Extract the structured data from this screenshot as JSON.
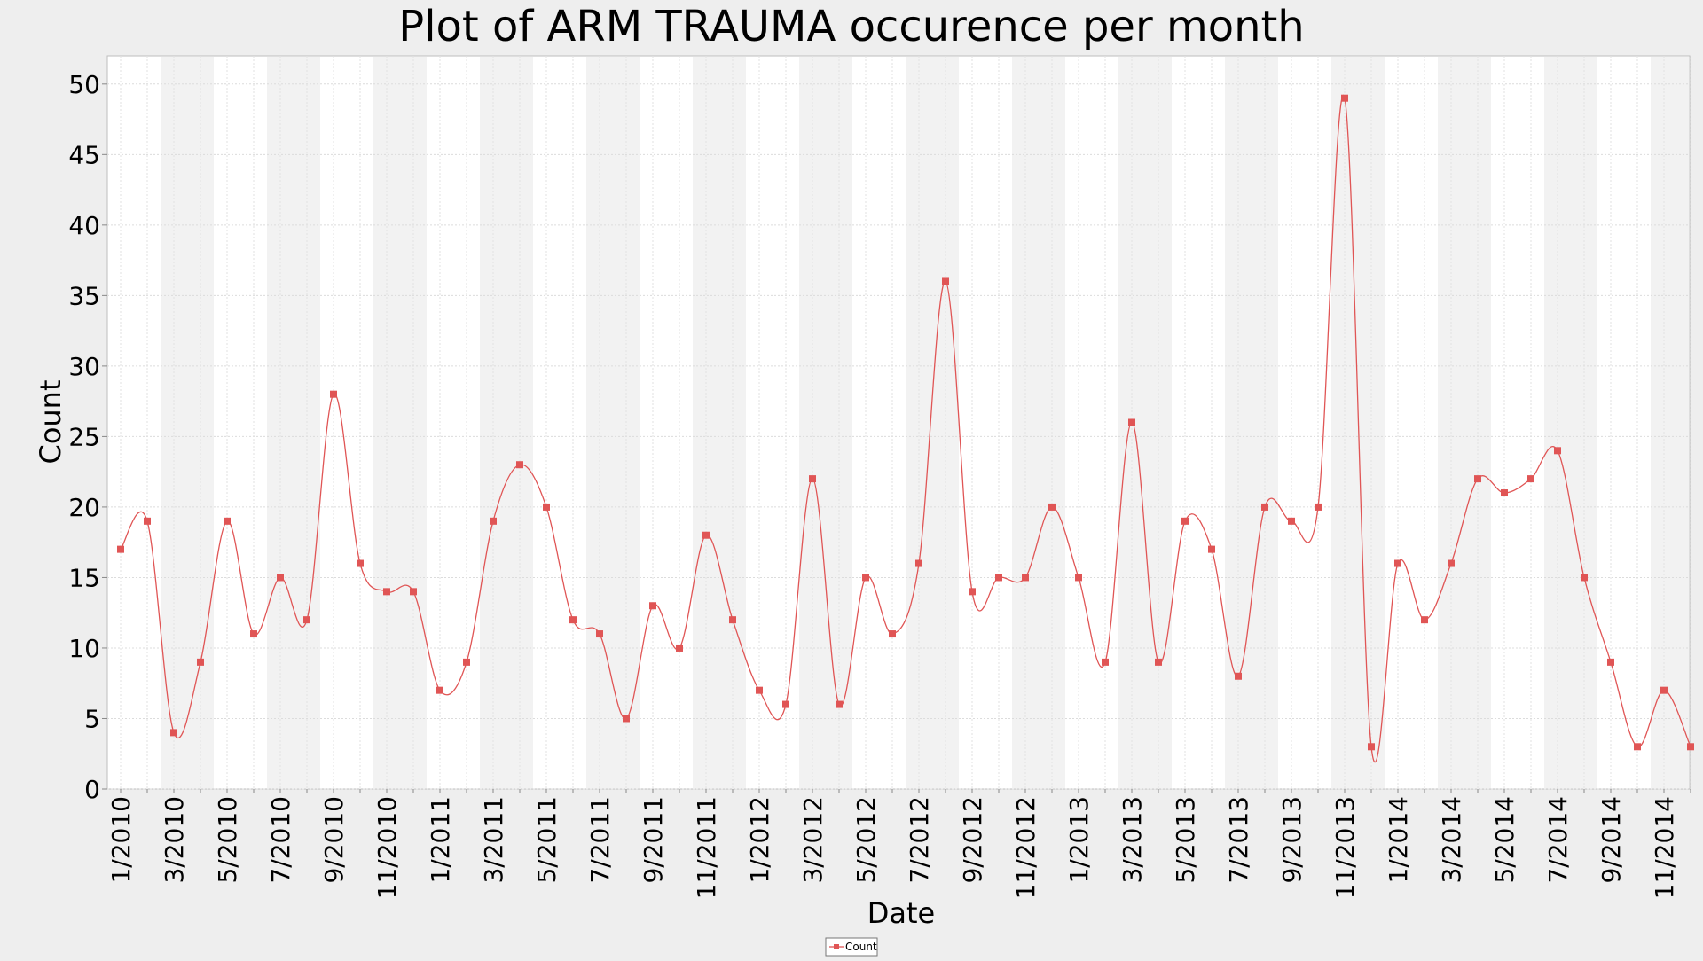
{
  "chart_data": {
    "type": "line",
    "title": "Plot of ARM TRAUMA occurence per month",
    "xlabel": "Date",
    "ylabel": "Count",
    "ylim": [
      0,
      52
    ],
    "y_ticks": [
      0,
      5,
      10,
      15,
      20,
      25,
      30,
      35,
      40,
      45,
      50
    ],
    "x_tick_labels": [
      "1/2010",
      "3/2010",
      "5/2010",
      "7/2010",
      "9/2010",
      "11/2010",
      "1/2011",
      "3/2011",
      "5/2011",
      "7/2011",
      "9/2011",
      "11/2011",
      "1/2012",
      "3/2012",
      "5/2012",
      "7/2012",
      "9/2012",
      "11/2012",
      "1/2013",
      "3/2013",
      "5/2013",
      "7/2013",
      "9/2013",
      "11/2013",
      "1/2014",
      "3/2014",
      "5/2014",
      "7/2014",
      "9/2014",
      "11/2014"
    ],
    "series": [
      {
        "name": "Count",
        "color": "#e05555",
        "x": [
          "1/2010",
          "2/2010",
          "3/2010",
          "4/2010",
          "5/2010",
          "6/2010",
          "7/2010",
          "8/2010",
          "9/2010",
          "10/2010",
          "11/2010",
          "12/2010",
          "1/2011",
          "2/2011",
          "3/2011",
          "4/2011",
          "5/2011",
          "6/2011",
          "7/2011",
          "8/2011",
          "9/2011",
          "10/2011",
          "11/2011",
          "12/2011",
          "1/2012",
          "2/2012",
          "3/2012",
          "4/2012",
          "5/2012",
          "6/2012",
          "7/2012",
          "8/2012",
          "9/2012",
          "10/2012",
          "11/2012",
          "12/2012",
          "1/2013",
          "2/2013",
          "3/2013",
          "4/2013",
          "5/2013",
          "6/2013",
          "7/2013",
          "8/2013",
          "9/2013",
          "10/2013",
          "11/2013",
          "12/2013",
          "1/2014",
          "2/2014",
          "3/2014",
          "4/2014",
          "5/2014",
          "6/2014",
          "7/2014",
          "8/2014",
          "9/2014",
          "10/2014",
          "11/2014",
          "12/2014"
        ],
        "values": [
          17,
          19,
          4,
          9,
          19,
          11,
          15,
          12,
          28,
          16,
          14,
          14,
          7,
          9,
          19,
          23,
          20,
          12,
          11,
          5,
          13,
          10,
          18,
          12,
          7,
          6,
          22,
          6,
          15,
          11,
          16,
          36,
          14,
          15,
          15,
          20,
          15,
          9,
          26,
          9,
          19,
          17,
          8,
          20,
          19,
          20,
          49,
          3,
          16,
          12,
          16,
          22,
          21,
          22,
          24,
          15,
          9,
          3,
          7,
          3
        ]
      }
    ],
    "grid": true,
    "alternating_bands": true,
    "legend": {
      "position": "bottom-center",
      "entries": [
        "Count"
      ]
    },
    "colors": {
      "background": "#eeeeee",
      "plot_background": "#ffffff",
      "band": "#f2f2f2",
      "line": "#e05555",
      "marker": "#e05555"
    }
  }
}
